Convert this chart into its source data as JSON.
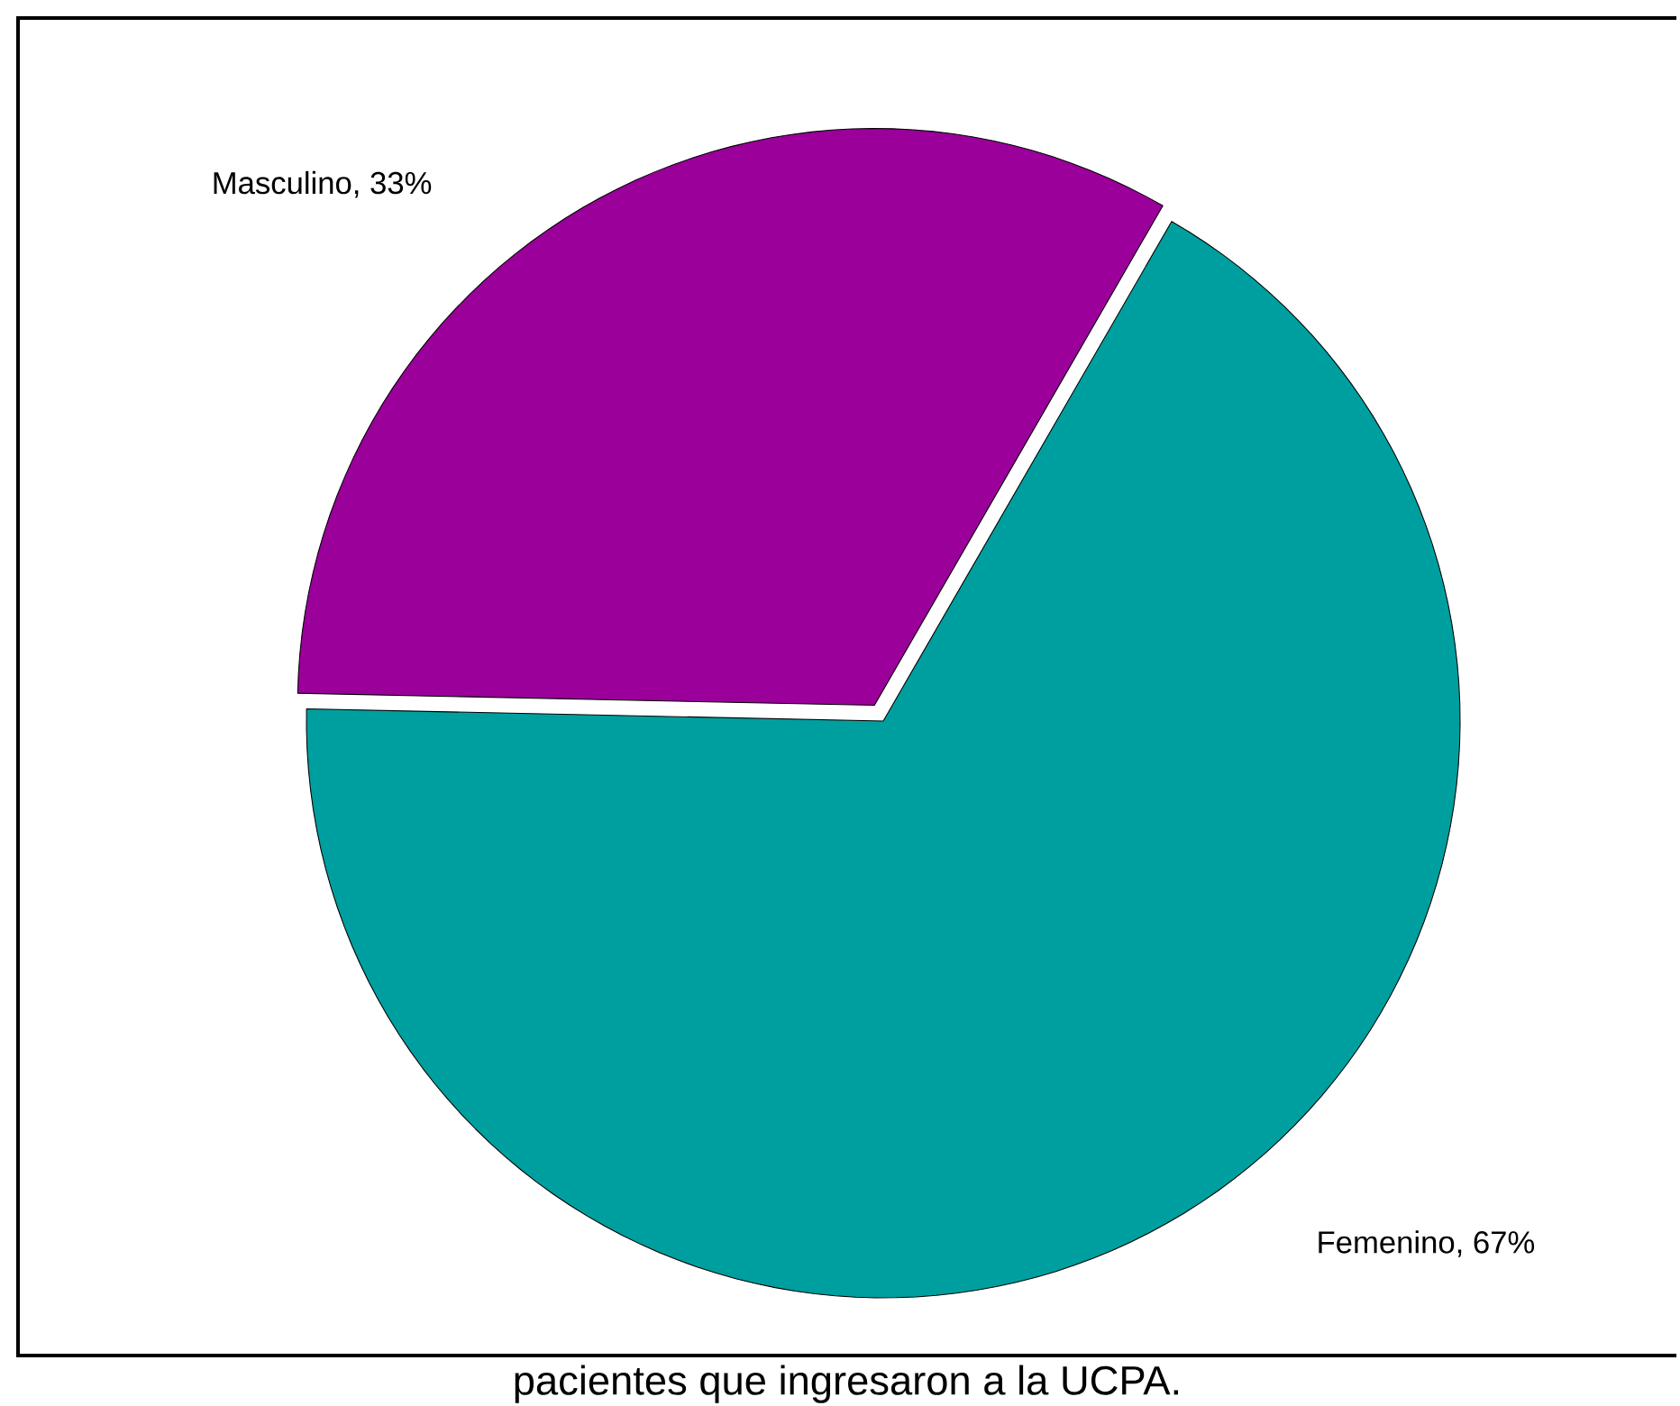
{
  "chart_data": {
    "type": "pie",
    "categories": [
      "Masculino, 33%",
      "Femenino, 67%"
    ],
    "values": [
      33,
      67
    ],
    "colors": [
      "#9b009b",
      "#009f9f"
    ],
    "annotations": [
      "pacientes que ingresaron a la UCPA."
    ]
  }
}
